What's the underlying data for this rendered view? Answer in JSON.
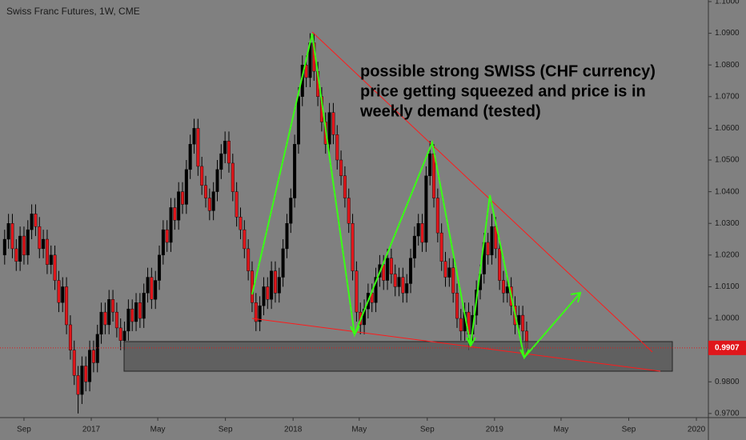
{
  "title": "Swiss Franc Futures, 1W, CME",
  "annotation": [
    "possible strong SWISS (CHF currency)",
    "price getting squeezed and price is in",
    "weekly demand (tested)"
  ],
  "chart_data": {
    "type": "candlestick",
    "up_color": "#000000",
    "down_color": "#e0161b",
    "x": [
      -5,
      -4,
      -3,
      -2,
      -1,
      0,
      1,
      2,
      3,
      4,
      5,
      6,
      7,
      8,
      9,
      10,
      11,
      12,
      13,
      14,
      15,
      16,
      17,
      18,
      19,
      20,
      21,
      22,
      23,
      24,
      25,
      26,
      27,
      28,
      29,
      30,
      31,
      32,
      33,
      34,
      35,
      36,
      37,
      38,
      39,
      40,
      41,
      42,
      43,
      44,
      45,
      46,
      47,
      48,
      49,
      50,
      51,
      52,
      53,
      54,
      55,
      56,
      57,
      58,
      59,
      60,
      61,
      62,
      63,
      64,
      65,
      66,
      67,
      68,
      69,
      70,
      71,
      72,
      73,
      74,
      75,
      76,
      77,
      78,
      79,
      80,
      81,
      82,
      83,
      84,
      85,
      86,
      87,
      88,
      89,
      90,
      91,
      92,
      93,
      94,
      95,
      96,
      97,
      98,
      99,
      100,
      101,
      102,
      103,
      104,
      105,
      106,
      107,
      108,
      109,
      110,
      111,
      112,
      113,
      114,
      115,
      116,
      117,
      118,
      119,
      120,
      121,
      122,
      123,
      124,
      125,
      126,
      127,
      128,
      129,
      130
    ],
    "candles": [
      [
        1.02,
        1.028,
        1.017,
        1.025
      ],
      [
        1.025,
        1.033,
        1.022,
        1.03
      ],
      [
        1.03,
        1.033,
        1.019,
        1.022
      ],
      [
        1.022,
        1.025,
        1.015,
        1.018
      ],
      [
        1.018,
        1.029,
        1.015,
        1.026
      ],
      [
        1.026,
        1.029,
        1.017,
        1.02
      ],
      [
        1.02,
        1.031,
        1.017,
        1.028
      ],
      [
        1.028,
        1.036,
        1.025,
        1.033
      ],
      [
        1.033,
        1.036,
        1.026,
        1.029
      ],
      [
        1.029,
        1.032,
        1.019,
        1.022
      ],
      [
        1.022,
        1.028,
        1.019,
        1.025
      ],
      [
        1.025,
        1.028,
        1.014,
        1.017
      ],
      [
        1.017,
        1.023,
        1.014,
        1.02
      ],
      [
        1.02,
        1.023,
        1.009,
        1.012
      ],
      [
        1.012,
        1.015,
        1.002,
        1.005
      ],
      [
        1.005,
        1.013,
        1.002,
        1.01
      ],
      [
        1.01,
        1.013,
        0.995,
        0.998
      ],
      [
        0.998,
        1.001,
        0.987,
        0.99
      ],
      [
        0.99,
        0.993,
        0.979,
        0.982
      ],
      [
        0.982,
        0.985,
        0.97,
        0.976
      ],
      [
        0.976,
        0.988,
        0.973,
        0.985
      ],
      [
        0.985,
        0.988,
        0.977,
        0.98
      ],
      [
        0.98,
        0.993,
        0.977,
        0.99
      ],
      [
        0.99,
        0.993,
        0.983,
        0.986
      ],
      [
        0.986,
        0.998,
        0.983,
        0.995
      ],
      [
        0.995,
        1.005,
        0.992,
        1.002
      ],
      [
        1.002,
        1.005,
        0.995,
        0.998
      ],
      [
        0.998,
        1.009,
        0.995,
        1.006
      ],
      [
        1.006,
        1.009,
        0.999,
        1.002
      ],
      [
        1.002,
        1.005,
        0.994,
        0.997
      ],
      [
        0.997,
        1.0,
        0.99,
        0.993
      ],
      [
        0.993,
        0.999,
        0.99,
        0.996
      ],
      [
        0.996,
        1.006,
        0.993,
        1.003
      ],
      [
        1.003,
        1.006,
        0.996,
        0.999
      ],
      [
        0.999,
        1.008,
        0.996,
        1.005
      ],
      [
        1.005,
        1.008,
        0.997,
        1.0
      ],
      [
        1.0,
        1.011,
        0.997,
        1.008
      ],
      [
        1.008,
        1.016,
        1.005,
        1.013
      ],
      [
        1.013,
        1.016,
        1.003,
        1.006
      ],
      [
        1.006,
        1.015,
        1.003,
        1.012
      ],
      [
        1.012,
        1.023,
        1.009,
        1.02
      ],
      [
        1.02,
        1.031,
        1.017,
        1.028
      ],
      [
        1.028,
        1.031,
        1.021,
        1.024
      ],
      [
        1.024,
        1.038,
        1.021,
        1.035
      ],
      [
        1.035,
        1.038,
        1.028,
        1.031
      ],
      [
        1.031,
        1.043,
        1.028,
        1.04
      ],
      [
        1.04,
        1.043,
        1.033,
        1.036
      ],
      [
        1.036,
        1.05,
        1.033,
        1.047
      ],
      [
        1.047,
        1.058,
        1.044,
        1.055
      ],
      [
        1.055,
        1.063,
        1.052,
        1.06
      ],
      [
        1.06,
        1.063,
        1.045,
        1.048
      ],
      [
        1.048,
        1.051,
        1.039,
        1.042
      ],
      [
        1.042,
        1.045,
        1.035,
        1.038
      ],
      [
        1.038,
        1.041,
        1.031,
        1.034
      ],
      [
        1.034,
        1.043,
        1.031,
        1.04
      ],
      [
        1.04,
        1.05,
        1.037,
        1.047
      ],
      [
        1.047,
        1.055,
        1.044,
        1.052
      ],
      [
        1.052,
        1.059,
        1.049,
        1.056
      ],
      [
        1.056,
        1.059,
        1.046,
        1.049
      ],
      [
        1.049,
        1.052,
        1.037,
        1.04
      ],
      [
        1.04,
        1.043,
        1.029,
        1.032
      ],
      [
        1.032,
        1.035,
        1.025,
        1.028
      ],
      [
        1.028,
        1.031,
        1.019,
        1.022
      ],
      [
        1.022,
        1.025,
        1.012,
        1.015
      ],
      [
        1.015,
        1.018,
        1.002,
        1.005
      ],
      [
        1.005,
        1.008,
        0.996,
        0.999
      ],
      [
        0.999,
        1.007,
        0.996,
        1.004
      ],
      [
        1.004,
        1.013,
        1.001,
        1.01
      ],
      [
        1.01,
        1.013,
        1.003,
        1.006
      ],
      [
        1.006,
        1.018,
        1.003,
        1.015
      ],
      [
        1.015,
        1.018,
        1.005,
        1.008
      ],
      [
        1.008,
        1.016,
        1.005,
        1.013
      ],
      [
        1.013,
        1.025,
        1.01,
        1.022
      ],
      [
        1.022,
        1.033,
        1.019,
        1.03
      ],
      [
        1.03,
        1.041,
        1.027,
        1.038
      ],
      [
        1.038,
        1.058,
        1.035,
        1.055
      ],
      [
        1.055,
        1.073,
        1.052,
        1.07
      ],
      [
        1.07,
        1.083,
        1.067,
        1.08
      ],
      [
        1.08,
        1.083,
        1.073,
        1.076
      ],
      [
        1.076,
        1.09,
        1.073,
        1.087
      ],
      [
        1.087,
        1.09,
        1.075,
        1.078
      ],
      [
        1.078,
        1.081,
        1.067,
        1.07
      ],
      [
        1.07,
        1.073,
        1.059,
        1.062
      ],
      [
        1.062,
        1.065,
        1.052,
        1.055
      ],
      [
        1.055,
        1.068,
        1.052,
        1.065
      ],
      [
        1.065,
        1.068,
        1.055,
        1.058
      ],
      [
        1.058,
        1.061,
        1.047,
        1.05
      ],
      [
        1.05,
        1.053,
        1.042,
        1.045
      ],
      [
        1.045,
        1.048,
        1.035,
        1.038
      ],
      [
        1.038,
        1.041,
        1.027,
        1.03
      ],
      [
        1.03,
        1.033,
        1.012,
        1.015
      ],
      [
        1.015,
        1.018,
        0.999,
        1.002
      ],
      [
        1.002,
        1.005,
        0.995,
        0.998
      ],
      [
        0.998,
        1.006,
        0.995,
        1.003
      ],
      [
        1.003,
        1.011,
        1.0,
        1.008
      ],
      [
        1.008,
        1.011,
        1.002,
        1.005
      ],
      [
        1.005,
        1.016,
        1.002,
        1.013
      ],
      [
        1.013,
        1.02,
        1.01,
        1.017
      ],
      [
        1.017,
        1.02,
        1.009,
        1.012
      ],
      [
        1.012,
        1.022,
        1.009,
        1.019
      ],
      [
        1.019,
        1.022,
        1.011,
        1.014
      ],
      [
        1.014,
        1.017,
        1.007,
        1.01
      ],
      [
        1.01,
        1.016,
        1.007,
        1.013
      ],
      [
        1.013,
        1.016,
        1.005,
        1.008
      ],
      [
        1.008,
        1.014,
        1.005,
        1.011
      ],
      [
        1.011,
        1.022,
        1.008,
        1.019
      ],
      [
        1.019,
        1.029,
        1.016,
        1.026
      ],
      [
        1.026,
        1.033,
        1.023,
        1.03
      ],
      [
        1.03,
        1.033,
        1.021,
        1.024
      ],
      [
        1.024,
        1.048,
        1.021,
        1.045
      ],
      [
        1.045,
        1.056,
        1.042,
        1.052
      ],
      [
        1.052,
        1.055,
        1.035,
        1.038
      ],
      [
        1.038,
        1.041,
        1.024,
        1.027
      ],
      [
        1.027,
        1.03,
        1.015,
        1.018
      ],
      [
        1.018,
        1.021,
        1.01,
        1.013
      ],
      [
        1.013,
        1.019,
        1.01,
        1.016
      ],
      [
        1.016,
        1.019,
        1.005,
        1.008
      ],
      [
        1.008,
        1.011,
        0.997,
        1.0
      ],
      [
        1.0,
        1.003,
        0.993,
        0.996
      ],
      [
        0.996,
        1.005,
        0.993,
        1.002
      ],
      [
        1.002,
        1.005,
        0.99,
        0.995
      ],
      [
        0.995,
        1.004,
        0.992,
        1.001
      ],
      [
        1.001,
        1.012,
        0.998,
        1.009
      ],
      [
        1.009,
        1.017,
        1.006,
        1.014
      ],
      [
        1.014,
        1.027,
        1.011,
        1.024
      ],
      [
        1.024,
        1.027,
        1.017,
        1.02
      ],
      [
        1.02,
        1.033,
        1.017,
        1.029
      ],
      [
        1.029,
        1.032,
        1.019,
        1.022
      ],
      [
        1.022,
        1.025,
        1.009,
        1.012
      ],
      [
        1.012,
        1.015,
        1.005,
        1.008
      ],
      [
        1.008,
        1.013,
        1.005,
        1.01
      ],
      [
        1.01,
        1.013,
        1.001,
        1.004
      ],
      [
        1.004,
        1.007,
        0.995,
        0.998
      ],
      [
        0.998,
        1.004,
        0.995,
        1.001
      ],
      [
        1.001,
        1.004,
        0.993,
        0.996
      ],
      [
        0.996,
        0.999,
        0.988,
        0.9907
      ]
    ],
    "last_price": 0.9907,
    "last_color": "#e0161b",
    "xlim": [
      -6.2,
      177
    ],
    "xticks": [
      {
        "value": 0,
        "label": "Sep"
      },
      {
        "value": 17.4,
        "label": "2017"
      },
      {
        "value": 34.6,
        "label": "May"
      },
      {
        "value": 52.1,
        "label": "Sep"
      },
      {
        "value": 69.6,
        "label": "2018"
      },
      {
        "value": 86.7,
        "label": "May"
      },
      {
        "value": 104.3,
        "label": "Sep"
      },
      {
        "value": 121.7,
        "label": "2019"
      },
      {
        "value": 138.9,
        "label": "May"
      },
      {
        "value": 156.4,
        "label": "Sep"
      },
      {
        "value": 173.9,
        "label": "2020"
      }
    ],
    "ylim": [
      0.9687,
      1.1005
    ],
    "yticks": [
      {
        "value": 1.1,
        "label": "1.1000"
      },
      {
        "value": 1.09,
        "label": "1.0900"
      },
      {
        "value": 1.08,
        "label": "1.0800"
      },
      {
        "value": 1.07,
        "label": "1.0700"
      },
      {
        "value": 1.06,
        "label": "1.0600"
      },
      {
        "value": 1.05,
        "label": "1.0500"
      },
      {
        "value": 1.04,
        "label": "1.0400"
      },
      {
        "value": 1.03,
        "label": "1.0300"
      },
      {
        "value": 1.02,
        "label": "1.0200"
      },
      {
        "value": 1.01,
        "label": "1.0100"
      },
      {
        "value": 1.0,
        "label": "1.0000"
      },
      {
        "value": 0.99,
        "label": "0.9900"
      },
      {
        "value": 0.98,
        "label": "0.9800"
      },
      {
        "value": 0.97,
        "label": "0.9700"
      }
    ]
  }
}
